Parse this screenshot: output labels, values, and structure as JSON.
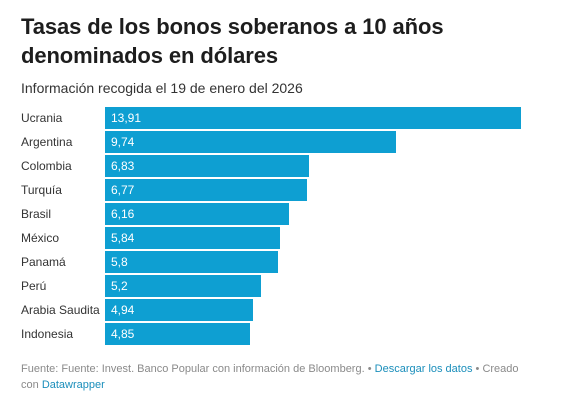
{
  "chart_data": {
    "type": "bar",
    "orientation": "horizontal",
    "title": "Tasas de los bonos soberanos a 10 años denominados en dólares",
    "subtitle": "Información recogida el 19 de enero del 2026",
    "categories": [
      "Ucrania",
      "Argentina",
      "Colombia",
      "Turquía",
      "Brasil",
      "México",
      "Panamá",
      "Perú",
      "Arabia Saudita",
      "Indonesia"
    ],
    "values": [
      13.91,
      9.74,
      6.83,
      6.77,
      6.16,
      5.84,
      5.8,
      5.2,
      4.94,
      4.85
    ],
    "value_labels": [
      "13,91",
      "9,74",
      "6,83",
      "6,77",
      "6,16",
      "5,84",
      "5,8",
      "5,2",
      "4,94",
      "4,85"
    ],
    "xlim": [
      0,
      13.91
    ],
    "bar_color": "#0e9fd2",
    "grid": false,
    "legend": "none"
  },
  "footer": {
    "source": "Fuente: Fuente: Invest. Banco Popular con información de Bloomberg.",
    "separator_1": "•",
    "download_link": "Descargar los datos",
    "separator_2": "• Creado con",
    "credit_link": "Datawrapper"
  },
  "colors": {
    "bar": "#0e9fd2",
    "link": "#1a8ebb",
    "footer_text": "#8a8a8a"
  }
}
